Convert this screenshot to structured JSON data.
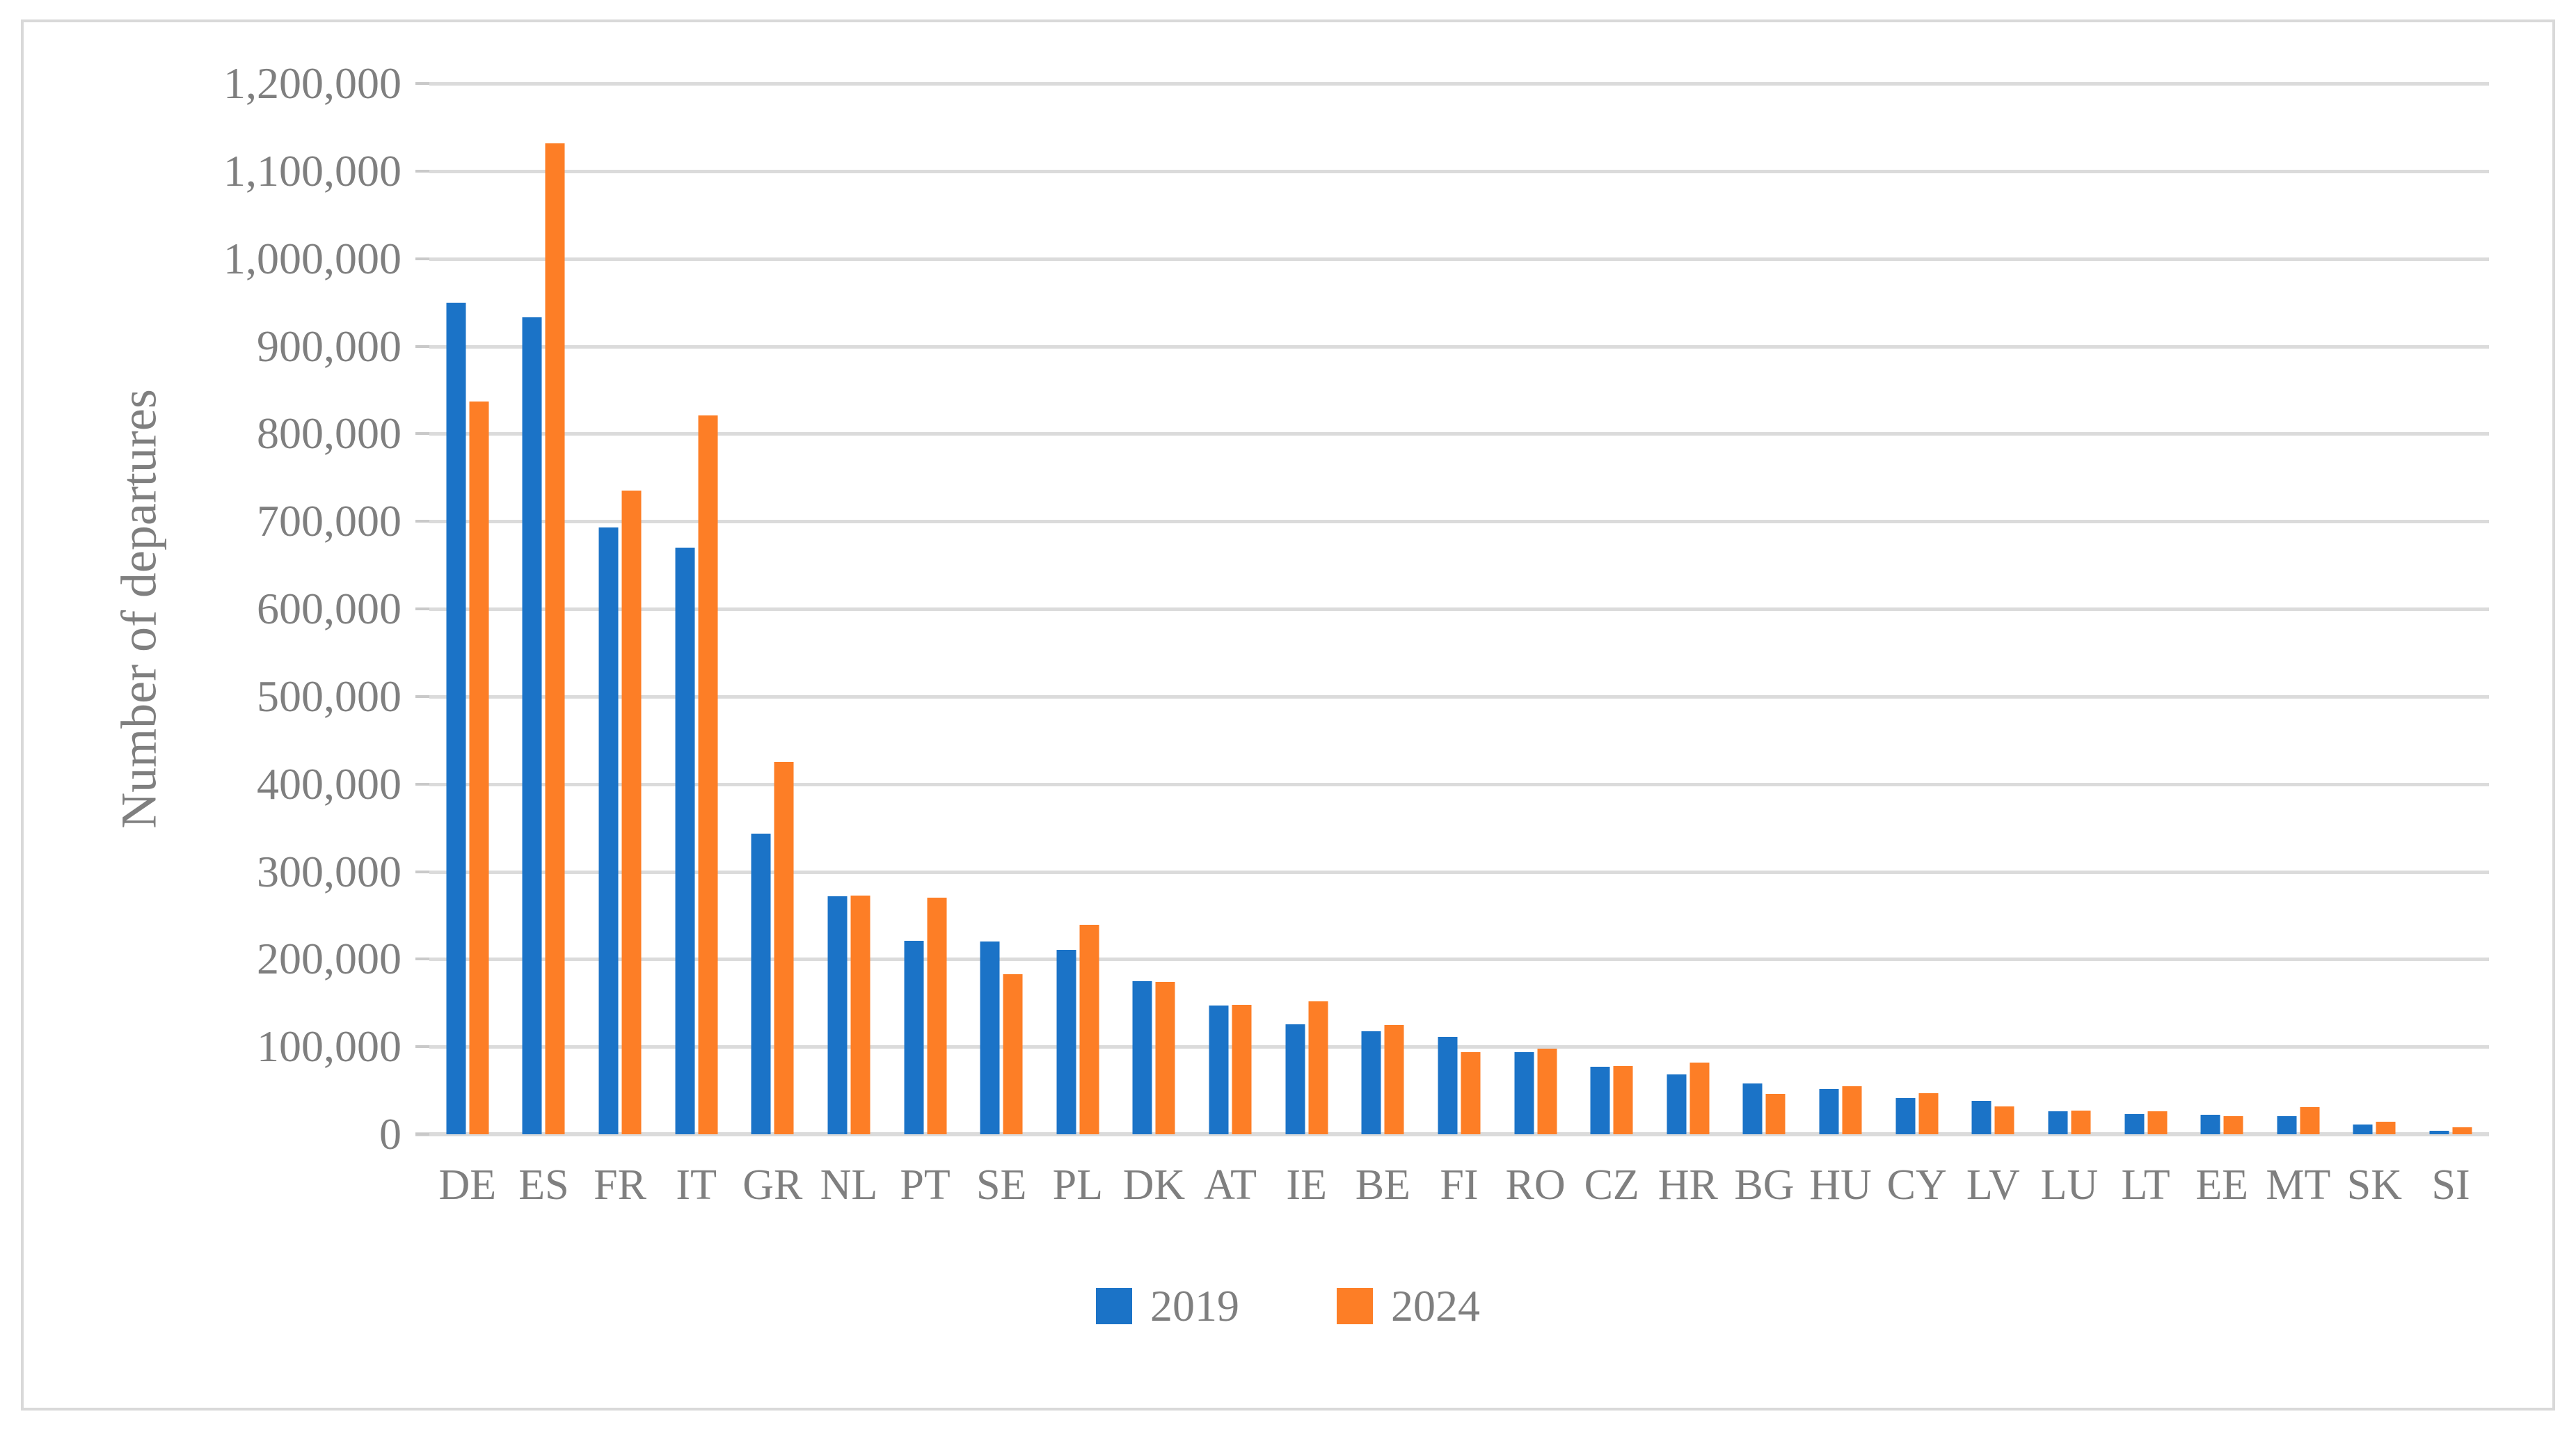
{
  "figure": {
    "background": "#FFFFFF",
    "border_color": "#D9D9D9",
    "text_color": "#7F7F7F",
    "grid_color": "#DBDBDB"
  },
  "chart_data": {
    "type": "bar",
    "title": "",
    "xlabel": "",
    "ylabel": "Number of departures",
    "ylim": [
      0,
      1200000
    ],
    "ytick_step": 100000,
    "ytick_labels": [
      "0",
      "100,000",
      "200,000",
      "300,000",
      "400,000",
      "500,000",
      "600,000",
      "700,000",
      "800,000",
      "900,000",
      "1,000,000",
      "1,100,000",
      "1,200,000"
    ],
    "grid": true,
    "legend_position": "bottom",
    "categories": [
      "DE",
      "ES",
      "FR",
      "IT",
      "GR",
      "NL",
      "PT",
      "SE",
      "PL",
      "DK",
      "AT",
      "IE",
      "BE",
      "FI",
      "RO",
      "CZ",
      "HR",
      "BG",
      "HU",
      "CY",
      "LV",
      "LU",
      "LT",
      "EE",
      "MT",
      "SK",
      "SI"
    ],
    "series": [
      {
        "name": "2019",
        "color": "#1B73C7",
        "values": [
          950000,
          933000,
          693000,
          670000,
          343000,
          272000,
          221000,
          220000,
          211000,
          175000,
          147000,
          126000,
          118000,
          111000,
          94000,
          77000,
          68000,
          58000,
          52000,
          41000,
          38000,
          26000,
          23000,
          22000,
          21000,
          11000,
          4000
        ]
      },
      {
        "name": "2024",
        "color": "#FD7E26",
        "values": [
          837000,
          1132000,
          735000,
          821000,
          425000,
          273000,
          270000,
          183000,
          239000,
          174000,
          148000,
          152000,
          125000,
          94000,
          98000,
          78000,
          82000,
          46000,
          55000,
          47000,
          32000,
          27000,
          26000,
          21000,
          31000,
          14000,
          8000
        ]
      }
    ]
  }
}
